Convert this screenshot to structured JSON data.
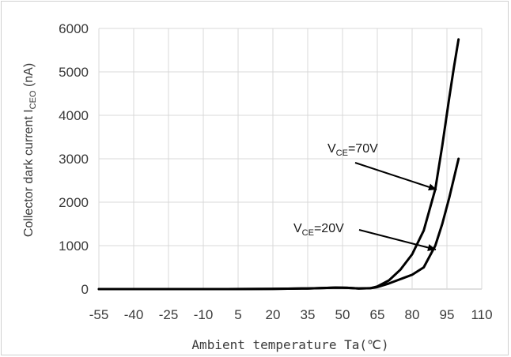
{
  "chart_data": {
    "type": "line",
    "title": "",
    "xlabel": "Ambient temperature Ta(℃)",
    "ylabel": {
      "main": "Collector dark current I",
      "sub": "CEO",
      "unit": " (nA)"
    },
    "xlim": [
      -55,
      110
    ],
    "ylim": [
      0,
      6000
    ],
    "xticks": [
      "-55",
      "-40",
      "-25",
      "-10",
      "5",
      "20",
      "35",
      "50",
      "65",
      "80",
      "95",
      "110"
    ],
    "yticks": [
      "0",
      "1000",
      "2000",
      "3000",
      "4000",
      "5000",
      "6000"
    ],
    "grid": "vertical-and-horizontal",
    "line_color": "#000000",
    "series": [
      {
        "label_main": "V",
        "label_sub": "CE",
        "label_rest": "=70V",
        "x": [
          -55,
          -30,
          0,
          20,
          35,
          42,
          47,
          52,
          57,
          62,
          65,
          70,
          75,
          80,
          85,
          90,
          93,
          96,
          98,
          100
        ],
        "y": [
          0,
          0,
          0,
          5,
          15,
          25,
          35,
          30,
          15,
          20,
          60,
          200,
          450,
          800,
          1350,
          2300,
          3300,
          4400,
          5100,
          5750
        ]
      },
      {
        "label_main": "V",
        "label_sub": "CE",
        "label_rest": "=20V",
        "x": [
          -55,
          -30,
          0,
          20,
          35,
          42,
          47,
          52,
          57,
          62,
          65,
          70,
          75,
          80,
          85,
          90,
          93,
          96,
          98,
          100
        ],
        "y": [
          0,
          0,
          0,
          5,
          15,
          25,
          35,
          30,
          15,
          20,
          45,
          130,
          230,
          330,
          500,
          1000,
          1500,
          2100,
          2550,
          3000
        ]
      }
    ]
  }
}
